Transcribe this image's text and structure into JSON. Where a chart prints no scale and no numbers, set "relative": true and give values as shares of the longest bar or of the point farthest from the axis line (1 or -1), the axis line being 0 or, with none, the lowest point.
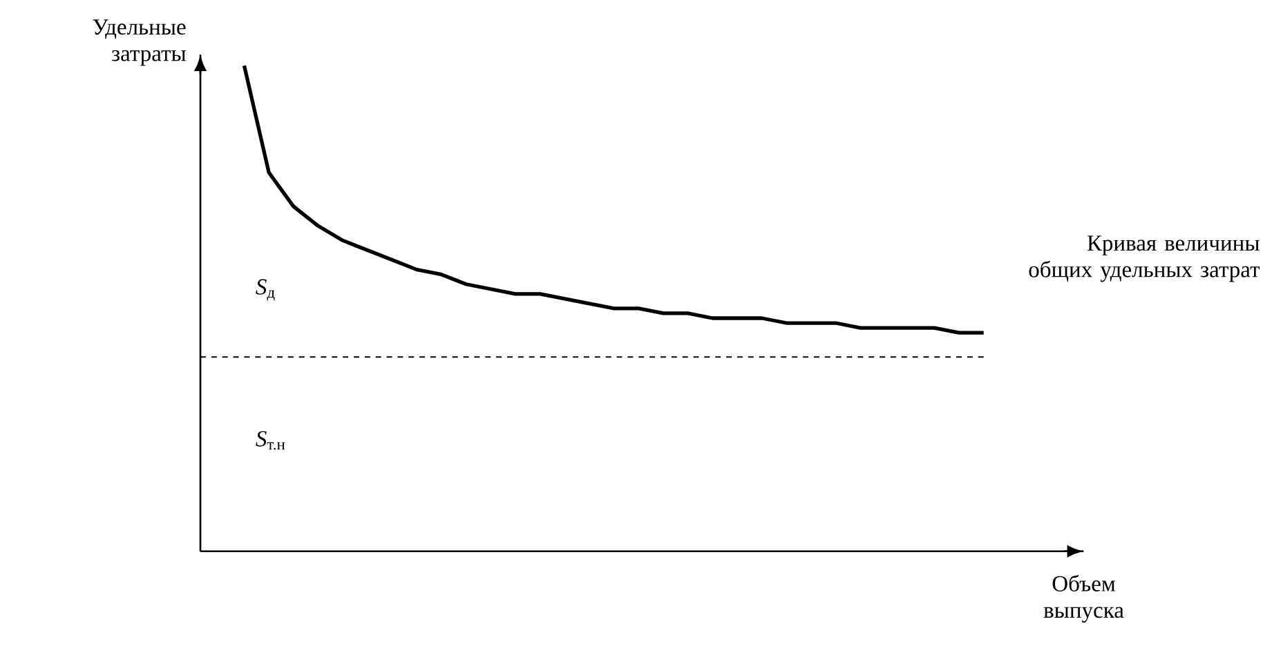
{
  "chart_data": {
    "type": "line",
    "relative": true,
    "xlabel": "Объем выпуска",
    "ylabel": "Удельные затраты",
    "categories": [
      null,
      null,
      null,
      null,
      null,
      null,
      null,
      null,
      null,
      null,
      null,
      null,
      null,
      null,
      null,
      null,
      null,
      null,
      null,
      null,
      null,
      null,
      null,
      null,
      null,
      null,
      null,
      null,
      null,
      null,
      null
    ],
    "series": [
      {
        "name": "Кривая величины общих удельных затрат",
        "color": "#000000",
        "values": [
          1.0,
          0.78,
          0.71,
          0.67,
          0.64,
          0.62,
          0.6,
          0.58,
          0.57,
          0.55,
          0.54,
          0.53,
          0.53,
          0.52,
          0.51,
          0.5,
          0.5,
          0.49,
          0.49,
          0.48,
          0.48,
          0.48,
          0.47,
          0.47,
          0.47,
          0.46,
          0.46,
          0.46,
          0.46,
          0.45,
          0.45
        ]
      }
    ],
    "ref_lines": [
      {
        "axis": "y",
        "value": 0.4,
        "color": "#000000",
        "line_style": "dashed"
      }
    ],
    "annotations": [
      "*S*$_{д}$",
      "*S*$_{т.н}$"
    ]
  }
}
